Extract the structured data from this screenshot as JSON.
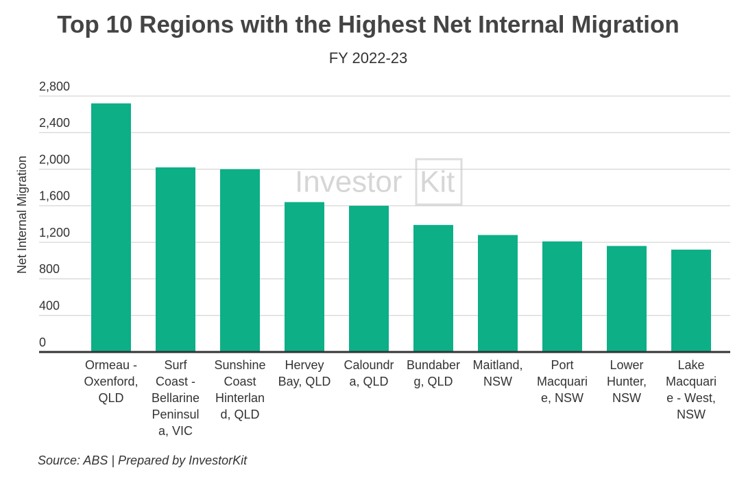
{
  "chart_data": {
    "type": "bar",
    "title": "Top 10 Regions with the Highest Net Internal Migration",
    "subtitle": "FY 2022-23",
    "y_label": "Net Internal Migration",
    "source": "Source: ABS | Prepared by InvestorKit",
    "watermark": [
      "Investor",
      "Kit"
    ],
    "categories": [
      [
        "Ormeau -",
        "Oxenford,",
        "QLD"
      ],
      [
        "Surf",
        "Coast -",
        "Bellarine",
        "Peninsul",
        "a, VIC"
      ],
      [
        "Sunshine",
        "Coast",
        "Hinterlan",
        "d, QLD"
      ],
      [
        "Hervey",
        "Bay, QLD"
      ],
      [
        "Caloundr",
        "a, QLD"
      ],
      [
        "Bundaber",
        "g, QLD"
      ],
      [
        "Maitland,",
        "NSW"
      ],
      [
        "Port",
        "Macquari",
        "e, NSW"
      ],
      [
        "Lower",
        "Hunter,",
        "NSW"
      ],
      [
        "Lake",
        "Macquari",
        "e - West,",
        "NSW"
      ]
    ],
    "values": [
      2720,
      2020,
      2000,
      1640,
      1600,
      1390,
      1280,
      1210,
      1160,
      1120
    ],
    "color": "#0daf87",
    "ylim": [
      0,
      2800
    ],
    "yticks": [
      0,
      400,
      800,
      {
        "value": 1200,
        "label": "1,200"
      },
      {
        "value": 1600,
        "label": "1,600"
      },
      {
        "value": 2000,
        "label": "2,000"
      },
      {
        "value": 2400,
        "label": "2,400"
      },
      {
        "value": 2800,
        "label": "2,800"
      }
    ],
    "grid": true
  }
}
